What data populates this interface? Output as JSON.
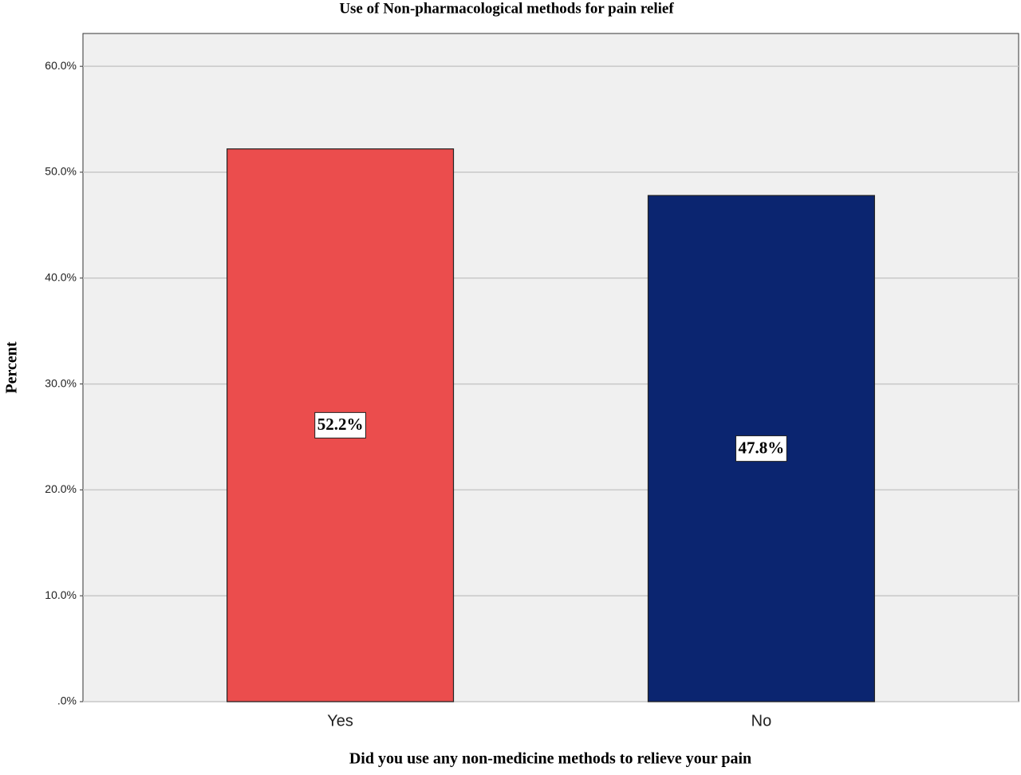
{
  "chart_data": {
    "type": "bar",
    "title": "Use of Non-pharmacological methods for pain relief",
    "x_label": "Did you use any non-medicine methods to relieve your pain",
    "y_label": "Percent",
    "categories": [
      "Yes",
      "No"
    ],
    "values": [
      52.2,
      47.8
    ],
    "value_labels": [
      "52.2%",
      "47.8%"
    ],
    "colors": [
      "#eb4d4d",
      "#0b2570"
    ],
    "ylim": [
      0,
      63.1
    ],
    "yticks": [
      {
        "value": 0,
        "label": ".0%"
      },
      {
        "value": 10,
        "label": "10.0%"
      },
      {
        "value": 20,
        "label": "20.0%"
      },
      {
        "value": 30,
        "label": "30.0%"
      },
      {
        "value": 40,
        "label": "40.0%"
      },
      {
        "value": 50,
        "label": "50.0%"
      },
      {
        "value": 60,
        "label": "60.0%"
      }
    ],
    "grid": true
  }
}
